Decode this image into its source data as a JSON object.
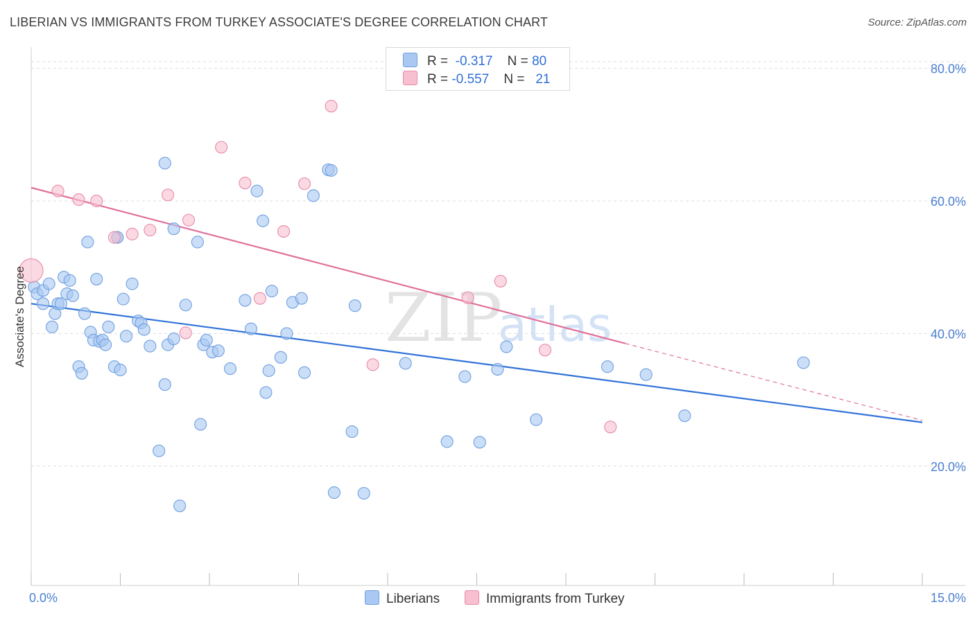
{
  "title": "LIBERIAN VS IMMIGRANTS FROM TURKEY ASSOCIATE'S DEGREE CORRELATION CHART",
  "source": "Source: ZipAtlas.com",
  "legend_top": [
    {
      "r_label": "R =",
      "r_value": "-0.317",
      "n_label": "N =",
      "n_value": "80",
      "color": "#a9c8f2",
      "border": "#6e9fe0"
    },
    {
      "r_label": "R =",
      "r_value": "-0.557",
      "n_label": "N =",
      "n_value": "21",
      "color": "#f7bfd0",
      "border": "#e88aa8"
    }
  ],
  "legend_bottom": [
    {
      "label": "Liberians",
      "color": "#a9c8f2",
      "border": "#6e9fe0"
    },
    {
      "label": "Immigrants from Turkey",
      "color": "#f7bfd0",
      "border": "#e88aa8"
    }
  ],
  "chart_data": {
    "type": "scatter",
    "title": "LIBERIAN VS IMMIGRANTS FROM TURKEY ASSOCIATE'S DEGREE CORRELATION CHART",
    "xlabel": "",
    "ylabel": "Associate's Degree",
    "xlim": [
      0,
      15
    ],
    "ylim": [
      2,
      82
    ],
    "x_tick_labels": [
      "0.0%",
      "15.0%"
    ],
    "y_ticks": [
      20,
      40,
      60,
      80
    ],
    "y_tick_labels": [
      "20.0%",
      "40.0%",
      "60.0%",
      "80.0%"
    ],
    "grid": true,
    "legend_position": "top-center",
    "series": [
      {
        "name": "Liberians",
        "color": "#a9c8f2",
        "stroke": "#6e9fe0",
        "line_color": "#2f72d8",
        "trend": {
          "x": [
            0,
            15
          ],
          "y": [
            44.5,
            26.6
          ]
        },
        "points": [
          [
            0.05,
            47.0
          ],
          [
            0.1,
            46.0
          ],
          [
            0.2,
            46.5
          ],
          [
            0.3,
            47.5
          ],
          [
            0.35,
            41.0
          ],
          [
            0.4,
            43.0
          ],
          [
            0.2,
            44.5
          ],
          [
            0.45,
            44.5
          ],
          [
            0.5,
            44.5
          ],
          [
            0.55,
            48.5
          ],
          [
            0.6,
            46.0
          ],
          [
            0.65,
            48.0
          ],
          [
            0.7,
            45.7
          ],
          [
            0.8,
            35.0
          ],
          [
            0.85,
            34.0
          ],
          [
            0.9,
            43.0
          ],
          [
            0.95,
            53.8
          ],
          [
            1.0,
            40.2
          ],
          [
            1.05,
            39.0
          ],
          [
            1.1,
            48.2
          ],
          [
            1.15,
            38.8
          ],
          [
            1.2,
            39.0
          ],
          [
            1.25,
            38.3
          ],
          [
            1.3,
            41.0
          ],
          [
            1.4,
            35.0
          ],
          [
            1.45,
            54.5
          ],
          [
            1.5,
            34.5
          ],
          [
            1.55,
            45.2
          ],
          [
            1.6,
            39.6
          ],
          [
            1.7,
            47.5
          ],
          [
            1.8,
            41.9
          ],
          [
            1.85,
            41.6
          ],
          [
            1.9,
            40.6
          ],
          [
            2.0,
            38.1
          ],
          [
            2.15,
            22.3
          ],
          [
            2.25,
            65.7
          ],
          [
            2.25,
            32.3
          ],
          [
            2.3,
            38.3
          ],
          [
            2.4,
            39.2
          ],
          [
            2.4,
            55.8
          ],
          [
            2.5,
            14.0
          ],
          [
            2.6,
            44.3
          ],
          [
            2.8,
            53.8
          ],
          [
            2.85,
            26.3
          ],
          [
            2.9,
            38.3
          ],
          [
            2.95,
            39.0
          ],
          [
            3.05,
            37.2
          ],
          [
            3.15,
            37.4
          ],
          [
            3.35,
            34.7
          ],
          [
            3.6,
            45.0
          ],
          [
            3.7,
            40.7
          ],
          [
            3.8,
            61.5
          ],
          [
            3.9,
            57.0
          ],
          [
            3.95,
            31.1
          ],
          [
            4.0,
            34.4
          ],
          [
            4.05,
            46.4
          ],
          [
            4.2,
            36.4
          ],
          [
            4.3,
            40.0
          ],
          [
            4.4,
            44.7
          ],
          [
            4.55,
            45.3
          ],
          [
            4.6,
            34.1
          ],
          [
            4.75,
            60.8
          ],
          [
            5.0,
            64.7
          ],
          [
            5.05,
            64.6
          ],
          [
            5.1,
            16.0
          ],
          [
            5.4,
            25.2
          ],
          [
            5.45,
            44.2
          ],
          [
            5.6,
            15.9
          ],
          [
            6.3,
            35.5
          ],
          [
            7.0,
            23.7
          ],
          [
            7.3,
            33.5
          ],
          [
            7.55,
            23.6
          ],
          [
            7.85,
            34.6
          ],
          [
            8.0,
            38.0
          ],
          [
            8.5,
            27.0
          ],
          [
            9.7,
            35.0
          ],
          [
            10.35,
            33.8
          ],
          [
            11.0,
            27.6
          ],
          [
            13.0,
            35.6
          ],
          [
            1.45,
            54.5
          ]
        ]
      },
      {
        "name": "Immigrants from Turkey",
        "color": "#f7bfd0",
        "stroke": "#e88aa8",
        "line_color": "#e0709a",
        "trend": {
          "x": [
            0,
            10.0
          ],
          "y": [
            62.0,
            38.5
          ]
        },
        "trend_dashed": {
          "x": [
            10.0,
            15
          ],
          "y": [
            38.5,
            26.9
          ]
        },
        "points": [
          [
            0.0,
            49.5
          ],
          [
            0.45,
            61.5
          ],
          [
            0.8,
            60.2
          ],
          [
            1.1,
            60.0
          ],
          [
            1.4,
            54.5
          ],
          [
            1.7,
            55.0
          ],
          [
            2.0,
            55.6
          ],
          [
            2.3,
            60.9
          ],
          [
            2.65,
            57.1
          ],
          [
            2.6,
            40.1
          ],
          [
            3.2,
            68.1
          ],
          [
            3.6,
            62.7
          ],
          [
            3.85,
            45.3
          ],
          [
            4.25,
            55.4
          ],
          [
            4.6,
            62.6
          ],
          [
            5.05,
            74.3
          ],
          [
            5.75,
            35.3
          ],
          [
            7.35,
            45.4
          ],
          [
            7.9,
            47.9
          ],
          [
            8.65,
            37.5
          ],
          [
            9.75,
            25.9
          ]
        ]
      }
    ]
  }
}
